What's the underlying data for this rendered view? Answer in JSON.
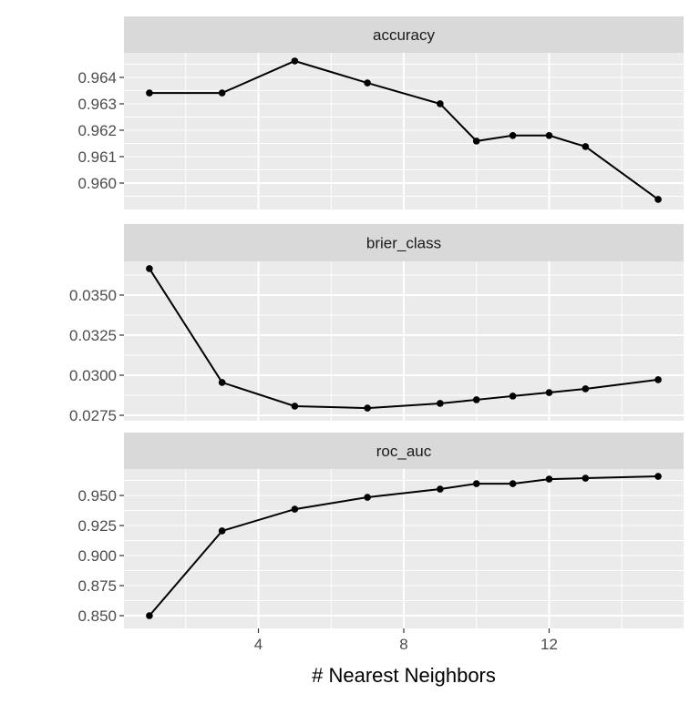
{
  "chart_data": {
    "type": "line",
    "facet": "vertical",
    "xlabel": "# Nearest Neighbors",
    "ylabel": "",
    "x_ticks": [
      4,
      8,
      12
    ],
    "x_minor": [
      2,
      6,
      10,
      14
    ],
    "xlim": [
      0.3,
      15.7
    ],
    "grid": true,
    "x": [
      1,
      3,
      5,
      7,
      9,
      10,
      11,
      12,
      13,
      15
    ],
    "panels": [
      {
        "strip": "accuracy",
        "ylim": [
          0.959,
          0.96493
        ],
        "y_ticks": [
          "0.960",
          "0.961",
          "0.962",
          "0.963",
          "0.964"
        ],
        "y_tick_values": [
          0.96,
          0.961,
          0.962,
          0.963,
          0.964
        ],
        "values": [
          0.96341,
          0.96341,
          0.96462,
          0.96379,
          0.963,
          0.96159,
          0.9618,
          0.9618,
          0.96138,
          0.95938
        ]
      },
      {
        "strip": "brier_class",
        "ylim": [
          0.02716,
          0.0371
        ],
        "y_ticks": [
          "0.0275",
          "0.0300",
          "0.0325",
          "0.0350"
        ],
        "y_tick_values": [
          0.0275,
          0.03,
          0.0325,
          0.035
        ],
        "values": [
          0.03665,
          0.02955,
          0.02807,
          0.02795,
          0.02824,
          0.02847,
          0.0287,
          0.02892,
          0.02915,
          0.02972
        ]
      },
      {
        "strip": "roc_auc",
        "ylim": [
          0.8394,
          0.972
        ],
        "y_ticks": [
          "0.850",
          "0.875",
          "0.900",
          "0.925",
          "0.950"
        ],
        "y_tick_values": [
          0.85,
          0.875,
          0.9,
          0.925,
          0.95
        ],
        "values": [
          0.85,
          0.9205,
          0.9386,
          0.9485,
          0.9553,
          0.9598,
          0.9598,
          0.9636,
          0.9644,
          0.9659
        ]
      }
    ],
    "colors": {
      "panel_bg": "#ebebeb",
      "strip_bg": "#d9d9d9",
      "grid": "#ffffff",
      "line": "#000000"
    }
  }
}
